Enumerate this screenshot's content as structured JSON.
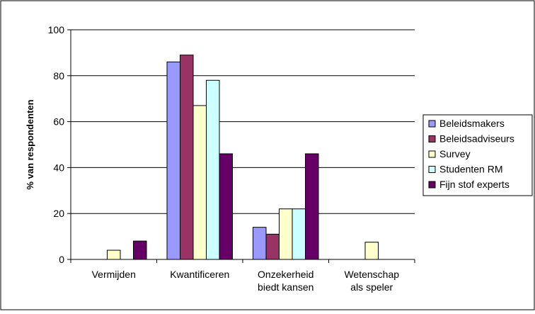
{
  "chart_data": {
    "type": "bar",
    "title": "",
    "xlabel": "",
    "ylabel": "% van respondenten",
    "ylim": [
      0,
      100
    ],
    "yticks": [
      0,
      20,
      40,
      60,
      80,
      100
    ],
    "grid": true,
    "legend_position": "right",
    "categories": [
      [
        "Vermijden"
      ],
      [
        "Kwantificeren"
      ],
      [
        "Onzekerheid",
        "biedt kansen"
      ],
      [
        "Wetenschap",
        "als speler"
      ]
    ],
    "series": [
      {
        "name": "Beleidsmakers",
        "color": "#9999ff",
        "values": [
          0,
          86,
          14,
          0
        ]
      },
      {
        "name": "Beleidsadviseurs",
        "color": "#993366",
        "values": [
          0,
          89,
          11,
          0
        ]
      },
      {
        "name": "Survey",
        "color": "#ffffcc",
        "values": [
          4,
          67,
          22,
          7.5
        ]
      },
      {
        "name": "Studenten RM",
        "color": "#ccffff",
        "values": [
          0,
          78,
          22,
          0
        ]
      },
      {
        "name": "Fijn stof experts",
        "color": "#660066",
        "values": [
          8,
          46,
          46,
          0
        ]
      }
    ]
  }
}
